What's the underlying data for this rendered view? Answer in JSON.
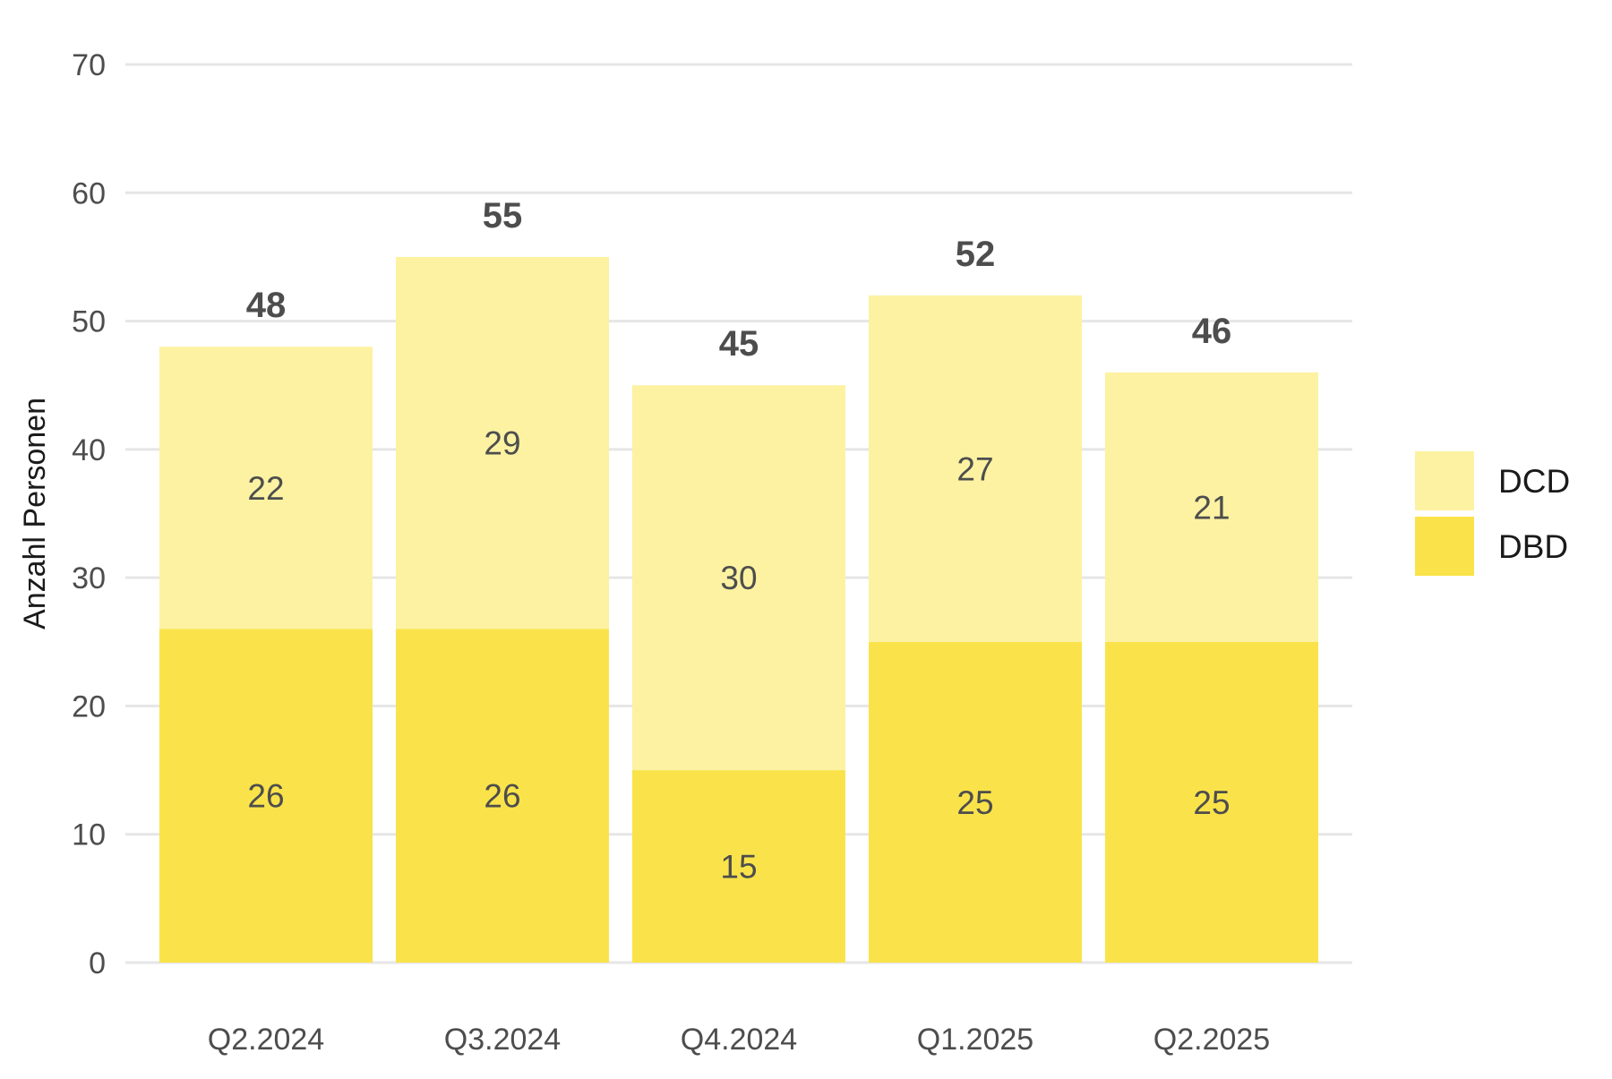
{
  "chart_data": {
    "type": "bar",
    "stacked": true,
    "categories": [
      "Q2.2024",
      "Q3.2024",
      "Q4.2024",
      "Q1.2025",
      "Q2.2025"
    ],
    "series": [
      {
        "name": "DBD",
        "values": [
          26,
          26,
          15,
          25,
          25
        ],
        "color": "#FAE34A"
      },
      {
        "name": "DCD",
        "values": [
          22,
          29,
          30,
          27,
          21
        ],
        "color": "#FCF2A2"
      }
    ],
    "totals": [
      48,
      55,
      45,
      52,
      46
    ],
    "ylabel": "Anzahl Personen",
    "xlabel": "",
    "ylim": [
      0,
      70
    ],
    "yticks": [
      0,
      10,
      20,
      30,
      40,
      50,
      60,
      70
    ],
    "grid": true,
    "legend_position": "right",
    "legend_order": [
      "DCD",
      "DBD"
    ],
    "gridline_color": "#E6E6E6"
  }
}
